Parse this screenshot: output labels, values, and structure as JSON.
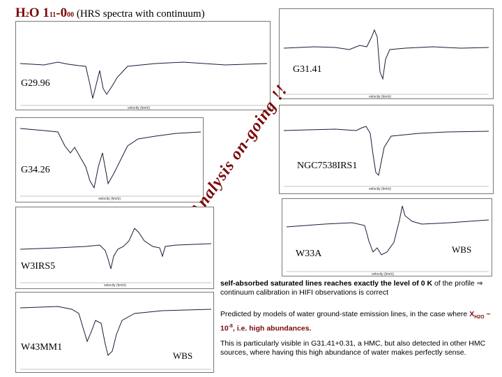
{
  "title": {
    "molecule": "H",
    "sub2": "2",
    "o": "O 1",
    "q1": "11",
    "dash": "-0",
    "q2": "00",
    "rest": " (HRS spectra with continuum)"
  },
  "sources": {
    "g3141": "G31.41",
    "g2996": "G29.96",
    "g3426": "G34.26",
    "ngc": "NGC7538IRS1",
    "w3irs5": "W3IRS5",
    "w33a": "W33A",
    "wbs_right": "WBS",
    "w43mm1": "W43MM1",
    "wbs_left": "WBS"
  },
  "axis_label": "velocity (km/s)",
  "banner": "Analysis on-going !!",
  "notes": {
    "p1_bold": "self-absorbed saturated lines reaches exactly the level of 0 K",
    "p1_rest": " of the profile ⇒ continuum calibration in HIFI observations is correct",
    "p2_a": "Predicted by models of water ground-state emission lines, in the case where ",
    "p2_x": "X",
    "p2_xsub": "H2O",
    "p2_b": " ~ 10",
    "p2_exp": "-8",
    "p2_c": ", i.e. high abundances.",
    "p3": "This is particularly visible in G31.41+0.31, a HMC, but also detected in other HMC sources, where having this high abundance of water makes perfectly sense."
  },
  "colors": {
    "accent": "#7a0a0a",
    "trace": "#1a1a3a"
  }
}
